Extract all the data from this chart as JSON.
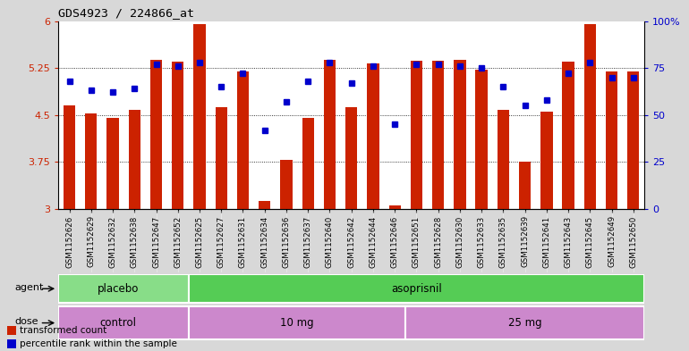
{
  "title": "GDS4923 / 224866_at",
  "samples": [
    "GSM1152626",
    "GSM1152629",
    "GSM1152632",
    "GSM1152638",
    "GSM1152647",
    "GSM1152652",
    "GSM1152625",
    "GSM1152627",
    "GSM1152631",
    "GSM1152634",
    "GSM1152636",
    "GSM1152637",
    "GSM1152640",
    "GSM1152642",
    "GSM1152644",
    "GSM1152646",
    "GSM1152651",
    "GSM1152628",
    "GSM1152630",
    "GSM1152633",
    "GSM1152635",
    "GSM1152639",
    "GSM1152641",
    "GSM1152643",
    "GSM1152645",
    "GSM1152649",
    "GSM1152650"
  ],
  "bar_values": [
    4.65,
    4.52,
    4.46,
    4.58,
    5.38,
    5.35,
    5.95,
    4.62,
    5.19,
    3.12,
    3.78,
    4.45,
    5.38,
    4.62,
    5.32,
    3.06,
    5.37,
    5.37,
    5.38,
    5.22,
    4.58,
    3.76,
    4.55,
    5.35,
    5.95,
    5.2,
    5.2
  ],
  "blue_values": [
    68,
    63,
    62,
    64,
    77,
    76,
    78,
    65,
    72,
    42,
    57,
    68,
    78,
    67,
    76,
    45,
    77,
    77,
    76,
    75,
    65,
    55,
    58,
    72,
    78,
    70,
    70
  ],
  "ylim_left": [
    3.0,
    6.0
  ],
  "ylim_right": [
    0,
    100
  ],
  "yticks_left": [
    3.0,
    3.75,
    4.5,
    5.25,
    6.0
  ],
  "yticks_right": [
    0,
    25,
    50,
    75,
    100
  ],
  "bar_color": "#cc2200",
  "dot_color": "#0000cc",
  "placebo_color": "#88dd88",
  "asoprisnil_color": "#55cc55",
  "dose_color": "#cc88cc",
  "legend_items": [
    {
      "label": "transformed count",
      "color": "#cc2200"
    },
    {
      "label": "percentile rank within the sample",
      "color": "#0000cc"
    }
  ],
  "background_color": "#d8d8d8",
  "plot_bg_color": "#ffffff",
  "xticklabel_bg": "#cccccc",
  "n_placebo": 6,
  "n_10mg": 10,
  "n_25mg": 11
}
